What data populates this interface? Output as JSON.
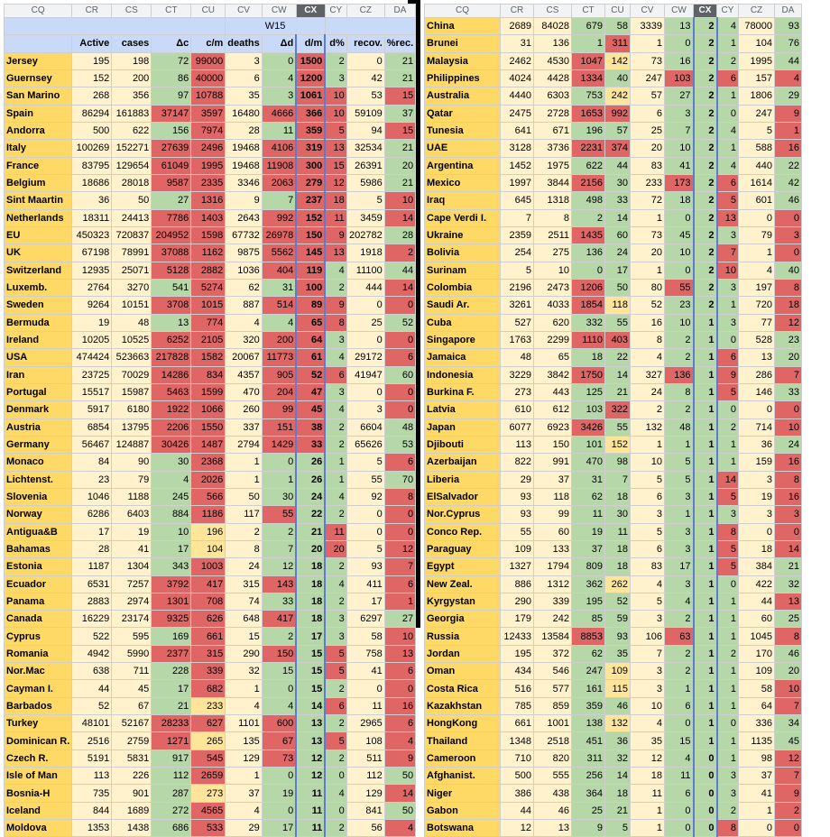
{
  "left": {
    "columns": [
      "CQ",
      "CR",
      "CS",
      "CT",
      "CU",
      "CV",
      "CW",
      "CX",
      "CY",
      "CZ",
      "DA"
    ],
    "selected_column": "CX",
    "week_label": "W15",
    "headers": [
      "Active",
      "cases",
      "Δc",
      "c/m",
      "deaths",
      "Δd",
      "d/m",
      "d%",
      "recov.",
      "%rec."
    ],
    "rows": [
      [
        "Jersey",
        "195",
        "198",
        "72",
        "99000",
        "3",
        "0",
        "1500",
        "2",
        "0",
        "21"
      ],
      [
        "Guernsey",
        "152",
        "200",
        "86",
        "40000",
        "6",
        "4",
        "1200",
        "3",
        "42",
        "21"
      ],
      [
        "San Marino",
        "268",
        "356",
        "97",
        "10788",
        "35",
        "3",
        "1061",
        "10",
        "53",
        "15"
      ],
      [
        "Spain",
        "86294",
        "161883",
        "37147",
        "3597",
        "16480",
        "4666",
        "366",
        "10",
        "59109",
        "37"
      ],
      [
        "Andorra",
        "500",
        "622",
        "156",
        "7974",
        "28",
        "11",
        "359",
        "5",
        "94",
        "15"
      ],
      [
        "Italy",
        "100269",
        "152271",
        "27639",
        "2496",
        "19468",
        "4106",
        "319",
        "13",
        "32534",
        "21"
      ],
      [
        "France",
        "83795",
        "129654",
        "61049",
        "1995",
        "19468",
        "11908",
        "300",
        "15",
        "26391",
        "20"
      ],
      [
        "Belgium",
        "18686",
        "28018",
        "9587",
        "2335",
        "3346",
        "2063",
        "279",
        "12",
        "5986",
        "21"
      ],
      [
        "Sint Maartin",
        "36",
        "50",
        "27",
        "1316",
        "9",
        "7",
        "237",
        "18",
        "5",
        "10"
      ],
      [
        "Netherlands",
        "18311",
        "24413",
        "7786",
        "1403",
        "2643",
        "992",
        "152",
        "11",
        "3459",
        "14"
      ],
      [
        "EU",
        "450323",
        "720837",
        "204952",
        "1598",
        "67732",
        "26978",
        "150",
        "9",
        "202782",
        "28"
      ],
      [
        "UK",
        "67198",
        "78991",
        "37088",
        "1162",
        "9875",
        "5562",
        "145",
        "13",
        "1918",
        "2"
      ],
      [
        "Switzerland",
        "12935",
        "25071",
        "5128",
        "2882",
        "1036",
        "404",
        "119",
        "4",
        "11100",
        "44"
      ],
      [
        "Luxemb.",
        "2764",
        "3270",
        "541",
        "5274",
        "62",
        "31",
        "100",
        "2",
        "444",
        "14"
      ],
      [
        "Sweden",
        "9264",
        "10151",
        "3708",
        "1015",
        "887",
        "514",
        "89",
        "9",
        "0",
        "0"
      ],
      [
        "Bermuda",
        "19",
        "48",
        "13",
        "774",
        "4",
        "4",
        "65",
        "8",
        "25",
        "52"
      ],
      [
        "Ireland",
        "10205",
        "10525",
        "6252",
        "2105",
        "320",
        "200",
        "64",
        "3",
        "0",
        "0"
      ],
      [
        "USA",
        "474424",
        "523663",
        "217828",
        "1582",
        "20067",
        "11773",
        "61",
        "4",
        "29172",
        "6"
      ],
      [
        "Iran",
        "23725",
        "70029",
        "14286",
        "834",
        "4357",
        "905",
        "52",
        "6",
        "41947",
        "60"
      ],
      [
        "Portugal",
        "15517",
        "15987",
        "5463",
        "1599",
        "470",
        "204",
        "47",
        "3",
        "0",
        "0"
      ],
      [
        "Denmark",
        "5917",
        "6180",
        "1922",
        "1066",
        "260",
        "99",
        "45",
        "4",
        "3",
        "0"
      ],
      [
        "Austria",
        "6854",
        "13795",
        "2206",
        "1550",
        "337",
        "151",
        "38",
        "2",
        "6604",
        "48"
      ],
      [
        "Germany",
        "56467",
        "124887",
        "30426",
        "1487",
        "2794",
        "1429",
        "33",
        "2",
        "65626",
        "53"
      ],
      [
        "Monaco",
        "84",
        "90",
        "30",
        "2368",
        "1",
        "0",
        "26",
        "1",
        "5",
        "6"
      ],
      [
        "Lichtenst.",
        "23",
        "79",
        "4",
        "2026",
        "1",
        "1",
        "26",
        "1",
        "55",
        "70"
      ],
      [
        "Slovenia",
        "1046",
        "1188",
        "245",
        "566",
        "50",
        "30",
        "24",
        "4",
        "92",
        "8"
      ],
      [
        "Norway",
        "6286",
        "6403",
        "884",
        "1186",
        "117",
        "55",
        "22",
        "2",
        "0",
        "0"
      ],
      [
        "Antigua&B",
        "17",
        "19",
        "10",
        "196",
        "2",
        "2",
        "21",
        "11",
        "0",
        "0"
      ],
      [
        "Bahamas",
        "28",
        "41",
        "17",
        "104",
        "8",
        "7",
        "20",
        "20",
        "5",
        "12"
      ],
      [
        "Estonia",
        "1187",
        "1304",
        "343",
        "1003",
        "24",
        "12",
        "18",
        "2",
        "93",
        "7"
      ],
      [
        "Ecuador",
        "6531",
        "7257",
        "3792",
        "417",
        "315",
        "143",
        "18",
        "4",
        "411",
        "6"
      ],
      [
        "Panama",
        "2883",
        "2974",
        "1301",
        "708",
        "74",
        "33",
        "18",
        "2",
        "17",
        "1"
      ],
      [
        "Canada",
        "16229",
        "23174",
        "9325",
        "626",
        "648",
        "417",
        "18",
        "3",
        "6297",
        "27"
      ],
      [
        "Cyprus",
        "522",
        "595",
        "169",
        "661",
        "15",
        "2",
        "17",
        "3",
        "58",
        "10"
      ],
      [
        "Romania",
        "4942",
        "5990",
        "2377",
        "315",
        "290",
        "150",
        "15",
        "5",
        "758",
        "13"
      ],
      [
        "Nor.Mac",
        "638",
        "711",
        "228",
        "339",
        "32",
        "15",
        "15",
        "5",
        "41",
        "6"
      ],
      [
        "Cayman I.",
        "44",
        "45",
        "17",
        "682",
        "1",
        "0",
        "15",
        "2",
        "0",
        "0"
      ],
      [
        "Barbados",
        "52",
        "67",
        "21",
        "233",
        "4",
        "4",
        "14",
        "6",
        "11",
        "16"
      ],
      [
        "Turkey",
        "48101",
        "52167",
        "28233",
        "627",
        "1101",
        "600",
        "13",
        "2",
        "2965",
        "6"
      ],
      [
        "Dominican R.",
        "2516",
        "2759",
        "1271",
        "265",
        "135",
        "67",
        "13",
        "5",
        "108",
        "4"
      ],
      [
        "Czech R.",
        "5191",
        "5831",
        "917",
        "545",
        "129",
        "73",
        "12",
        "2",
        "511",
        "9"
      ],
      [
        "Isle of Man",
        "113",
        "226",
        "112",
        "2659",
        "1",
        "0",
        "12",
        "0",
        "112",
        "50"
      ],
      [
        "Bosnia-H",
        "735",
        "901",
        "287",
        "273",
        "37",
        "19",
        "11",
        "4",
        "129",
        "14"
      ],
      [
        "Iceland",
        "844",
        "1689",
        "272",
        "4565",
        "4",
        "0",
        "11",
        "0",
        "841",
        "50"
      ],
      [
        "Moldova",
        "1353",
        "1438",
        "686",
        "533",
        "29",
        "17",
        "11",
        "2",
        "56",
        "4"
      ]
    ]
  },
  "right": {
    "columns": [
      "CQ",
      "CR",
      "CS",
      "CT",
      "CU",
      "CV",
      "CW",
      "CX",
      "CY",
      "CZ",
      "DA"
    ],
    "selected_column": "CX",
    "rows": [
      [
        "China",
        "2689",
        "84028",
        "679",
        "58",
        "3339",
        "13",
        "2",
        "4",
        "78000",
        "93"
      ],
      [
        "Brunei",
        "31",
        "136",
        "1",
        "311",
        "1",
        "0",
        "2",
        "1",
        "104",
        "76"
      ],
      [
        "Malaysia",
        "2462",
        "4530",
        "1047",
        "142",
        "73",
        "16",
        "2",
        "2",
        "1995",
        "44"
      ],
      [
        "Philippines",
        "4024",
        "4428",
        "1334",
        "40",
        "247",
        "103",
        "2",
        "6",
        "157",
        "4"
      ],
      [
        "Australia",
        "4440",
        "6303",
        "753",
        "242",
        "57",
        "27",
        "2",
        "1",
        "1806",
        "29"
      ],
      [
        "Qatar",
        "2475",
        "2728",
        "1653",
        "992",
        "6",
        "3",
        "2",
        "0",
        "247",
        "9"
      ],
      [
        "Tunesia",
        "641",
        "671",
        "196",
        "57",
        "25",
        "7",
        "2",
        "4",
        "5",
        "1"
      ],
      [
        "UAE",
        "3128",
        "3736",
        "2231",
        "374",
        "20",
        "10",
        "2",
        "1",
        "588",
        "16"
      ],
      [
        "Argentina",
        "1452",
        "1975",
        "622",
        "44",
        "83",
        "41",
        "2",
        "4",
        "440",
        "22"
      ],
      [
        "Mexico",
        "1997",
        "3844",
        "2156",
        "30",
        "233",
        "173",
        "2",
        "6",
        "1614",
        "42"
      ],
      [
        "Iraq",
        "645",
        "1318",
        "498",
        "33",
        "72",
        "18",
        "2",
        "5",
        "601",
        "46"
      ],
      [
        "Cape Verdi I.",
        "7",
        "8",
        "2",
        "14",
        "1",
        "0",
        "2",
        "13",
        "0",
        "0"
      ],
      [
        "Ukraine",
        "2359",
        "2511",
        "1435",
        "60",
        "73",
        "45",
        "2",
        "3",
        "79",
        "3"
      ],
      [
        "Bolivia",
        "254",
        "275",
        "136",
        "24",
        "20",
        "10",
        "2",
        "7",
        "1",
        "0"
      ],
      [
        "Surinam",
        "5",
        "10",
        "0",
        "17",
        "1",
        "0",
        "2",
        "10",
        "4",
        "40"
      ],
      [
        "Colombia",
        "2196",
        "2473",
        "1206",
        "50",
        "80",
        "55",
        "2",
        "3",
        "197",
        "8"
      ],
      [
        "Saudi Ar.",
        "3261",
        "4033",
        "1854",
        "118",
        "52",
        "23",
        "2",
        "1",
        "720",
        "18"
      ],
      [
        "Cuba",
        "527",
        "620",
        "332",
        "55",
        "16",
        "10",
        "1",
        "3",
        "77",
        "12"
      ],
      [
        "Singapore",
        "1763",
        "2299",
        "1110",
        "403",
        "8",
        "2",
        "1",
        "0",
        "528",
        "23"
      ],
      [
        "Jamaica",
        "48",
        "65",
        "18",
        "22",
        "4",
        "2",
        "1",
        "6",
        "13",
        "20"
      ],
      [
        "Indonesia",
        "3229",
        "3842",
        "1750",
        "14",
        "327",
        "136",
        "1",
        "9",
        "286",
        "7"
      ],
      [
        "Burkina F.",
        "273",
        "443",
        "125",
        "21",
        "24",
        "8",
        "1",
        "5",
        "146",
        "33"
      ],
      [
        "Latvia",
        "610",
        "612",
        "103",
        "322",
        "2",
        "2",
        "1",
        "0",
        "0",
        "0"
      ],
      [
        "Japan",
        "6077",
        "6923",
        "3426",
        "55",
        "132",
        "48",
        "1",
        "2",
        "714",
        "10"
      ],
      [
        "Djibouti",
        "113",
        "150",
        "101",
        "152",
        "1",
        "1",
        "1",
        "1",
        "36",
        "24"
      ],
      [
        "Azerbaijan",
        "822",
        "991",
        "470",
        "98",
        "10",
        "5",
        "1",
        "1",
        "159",
        "16"
      ],
      [
        "Liberia",
        "29",
        "37",
        "31",
        "7",
        "5",
        "5",
        "1",
        "14",
        "3",
        "8"
      ],
      [
        "ElSalvador",
        "93",
        "118",
        "62",
        "18",
        "6",
        "3",
        "1",
        "5",
        "19",
        "16"
      ],
      [
        "Nor.Cyprus",
        "93",
        "99",
        "11",
        "30",
        "3",
        "1",
        "1",
        "3",
        "3",
        "3"
      ],
      [
        "Conco Rep.",
        "55",
        "60",
        "19",
        "11",
        "5",
        "3",
        "1",
        "8",
        "0",
        "0"
      ],
      [
        "Paraguay",
        "109",
        "133",
        "37",
        "18",
        "6",
        "3",
        "1",
        "5",
        "18",
        "14"
      ],
      [
        "Egypt",
        "1327",
        "1794",
        "809",
        "18",
        "83",
        "17",
        "1",
        "5",
        "384",
        "21"
      ],
      [
        "New Zeal.",
        "886",
        "1312",
        "362",
        "262",
        "4",
        "3",
        "1",
        "0",
        "422",
        "32"
      ],
      [
        "Kyrgystan",
        "290",
        "339",
        "195",
        "52",
        "5",
        "4",
        "1",
        "1",
        "44",
        "13"
      ],
      [
        "Georgia",
        "179",
        "242",
        "85",
        "59",
        "3",
        "2",
        "1",
        "1",
        "60",
        "25"
      ],
      [
        "Russia",
        "12433",
        "13584",
        "8853",
        "93",
        "106",
        "63",
        "1",
        "1",
        "1045",
        "8"
      ],
      [
        "Jordan",
        "195",
        "372",
        "62",
        "35",
        "7",
        "2",
        "1",
        "2",
        "170",
        "46"
      ],
      [
        "Oman",
        "434",
        "546",
        "247",
        "109",
        "3",
        "2",
        "1",
        "1",
        "109",
        "20"
      ],
      [
        "Costa Rica",
        "516",
        "577",
        "161",
        "115",
        "3",
        "1",
        "1",
        "1",
        "58",
        "10"
      ],
      [
        "Kazakhstan",
        "785",
        "859",
        "359",
        "46",
        "10",
        "6",
        "1",
        "1",
        "64",
        "7"
      ],
      [
        "HongKong",
        "661",
        "1001",
        "138",
        "132",
        "4",
        "0",
        "1",
        "0",
        "336",
        "34"
      ],
      [
        "Thailand",
        "1348",
        "2518",
        "451",
        "36",
        "35",
        "15",
        "1",
        "1",
        "1135",
        "45"
      ],
      [
        "Cameroon",
        "710",
        "820",
        "311",
        "32",
        "12",
        "4",
        "0",
        "1",
        "98",
        "12"
      ],
      [
        "Afghanist.",
        "500",
        "555",
        "256",
        "14",
        "18",
        "11",
        "0",
        "3",
        "37",
        "7"
      ],
      [
        "Niger",
        "386",
        "438",
        "364",
        "18",
        "11",
        "6",
        "0",
        "3",
        "41",
        "9"
      ],
      [
        "Gabon",
        "44",
        "46",
        "25",
        "21",
        "1",
        "0",
        "0",
        "2",
        "1",
        "2"
      ],
      [
        "Botswana",
        "12",
        "13",
        "9",
        "5",
        "1",
        "0",
        "0",
        "8",
        "0",
        "0"
      ]
    ]
  }
}
